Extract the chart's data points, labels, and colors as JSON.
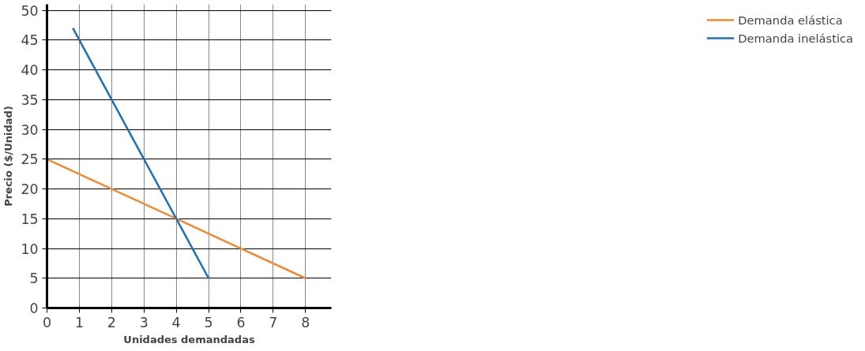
{
  "chart_data": {
    "type": "line",
    "xlabel": "Unidades demandadas",
    "ylabel": "Precio ($/Unidad)",
    "series": [
      {
        "name": "Demanda elástica",
        "color": "#f28a30",
        "x": [
          0,
          8
        ],
        "values": [
          25,
          5
        ]
      },
      {
        "name": "Demanda inelástica",
        "color": "#1f6fb4",
        "x": [
          0.8,
          5
        ],
        "values": [
          47,
          5
        ]
      }
    ],
    "xlim": [
      0,
      8.8
    ],
    "ylim": [
      0,
      51
    ],
    "xticks": [
      0,
      1,
      2,
      3,
      4,
      5,
      6,
      7,
      8
    ],
    "yticks": [
      0,
      5,
      10,
      15,
      20,
      25,
      30,
      35,
      40,
      45,
      50
    ],
    "grid": true,
    "legend": "top right",
    "marker": "none",
    "line_style": "solid"
  }
}
